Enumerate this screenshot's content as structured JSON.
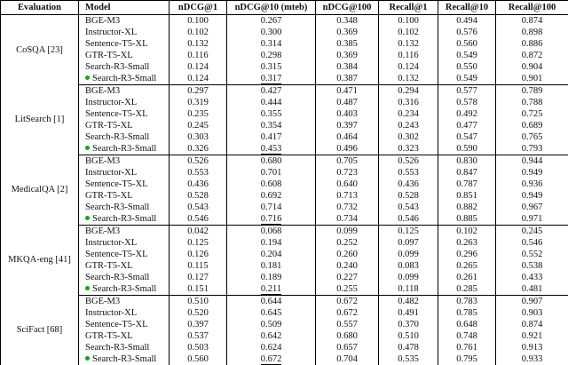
{
  "colors": {
    "dot_green": "#17a317",
    "border": "#000000",
    "text": "#111111",
    "background": "#ffffff"
  },
  "table": {
    "headers": [
      "Evaluation",
      "Model",
      "nDCG@1",
      "nDCG@10 (mteb)",
      "nDCG@100",
      "Recall@1",
      "Recall@10",
      "Recall@100"
    ],
    "groups": [
      {
        "evaluation": "CoSQA [23]",
        "rows": [
          {
            "model": "BGE-M3",
            "dot": false,
            "values": [
              "0.100",
              "0.267",
              "0.348",
              "0.100",
              "0.494",
              "0.874"
            ],
            "underline": []
          },
          {
            "model": "Instructor-XL",
            "dot": false,
            "values": [
              "0.102",
              "0.300",
              "0.369",
              "0.102",
              "0.576",
              "0.898"
            ],
            "underline": []
          },
          {
            "model": "Sentence-T5-XL",
            "dot": false,
            "values": [
              "0.132",
              "0.314",
              "0.385",
              "0.132",
              "0.560",
              "0.886"
            ],
            "underline": []
          },
          {
            "model": "GTR-T5-XL",
            "dot": false,
            "values": [
              "0.116",
              "0.298",
              "0.369",
              "0.116",
              "0.549",
              "0.872"
            ],
            "underline": []
          },
          {
            "model": "Search-R3-Small",
            "dot": false,
            "values": [
              "0.124",
              "0.315",
              "0.384",
              "0.124",
              "0.550",
              "0.904"
            ],
            "underline": []
          },
          {
            "model": "Search-R3-Small",
            "dot": true,
            "values": [
              "0.124",
              "0.317",
              "0.387",
              "0.132",
              "0.549",
              "0.901"
            ],
            "underline": [
              1
            ]
          }
        ]
      },
      {
        "evaluation": "LitSearch [1]",
        "rows": [
          {
            "model": "BGE-M3",
            "dot": false,
            "values": [
              "0.297",
              "0.427",
              "0.471",
              "0.294",
              "0.577",
              "0.789"
            ],
            "underline": []
          },
          {
            "model": "Instructor-XL",
            "dot": false,
            "values": [
              "0.319",
              "0.444",
              "0.487",
              "0.316",
              "0.578",
              "0.788"
            ],
            "underline": []
          },
          {
            "model": "Sentence-T5-XL",
            "dot": false,
            "values": [
              "0.235",
              "0.355",
              "0.403",
              "0.234",
              "0.492",
              "0.725"
            ],
            "underline": []
          },
          {
            "model": "GTR-T5-XL",
            "dot": false,
            "values": [
              "0.245",
              "0.354",
              "0.397",
              "0.243",
              "0.477",
              "0.689"
            ],
            "underline": []
          },
          {
            "model": "Search-R3-Small",
            "dot": false,
            "values": [
              "0.303",
              "0.417",
              "0.464",
              "0.302",
              "0.547",
              "0.765"
            ],
            "underline": []
          },
          {
            "model": "Search-R3-Small",
            "dot": true,
            "values": [
              "0.326",
              "0.453",
              "0.496",
              "0.323",
              "0.590",
              "0.793"
            ],
            "underline": [
              1
            ]
          }
        ]
      },
      {
        "evaluation": "MedicalQA [2]",
        "rows": [
          {
            "model": "BGE-M3",
            "dot": false,
            "values": [
              "0.526",
              "0.680",
              "0.705",
              "0.526",
              "0.830",
              "0.944"
            ],
            "underline": []
          },
          {
            "model": "Instructor-XL",
            "dot": false,
            "values": [
              "0.553",
              "0.701",
              "0.723",
              "0.553",
              "0.847",
              "0.949"
            ],
            "underline": []
          },
          {
            "model": "Sentence-T5-XL",
            "dot": false,
            "values": [
              "0.436",
              "0.608",
              "0.640",
              "0.436",
              "0.787",
              "0.936"
            ],
            "underline": []
          },
          {
            "model": "GTR-T5-XL",
            "dot": false,
            "values": [
              "0.528",
              "0.692",
              "0.713",
              "0.528",
              "0.851",
              "0.949"
            ],
            "underline": []
          },
          {
            "model": "Search-R3-Small",
            "dot": false,
            "values": [
              "0.543",
              "0.714",
              "0.732",
              "0.543",
              "0.882",
              "0.967"
            ],
            "underline": []
          },
          {
            "model": "Search-R3-Small",
            "dot": true,
            "values": [
              "0.546",
              "0.716",
              "0.734",
              "0.546",
              "0.885",
              "0.971"
            ],
            "underline": [
              1
            ]
          }
        ]
      },
      {
        "evaluation": "MKQA-eng [41]",
        "rows": [
          {
            "model": "BGE-M3",
            "dot": false,
            "values": [
              "0.042",
              "0.068",
              "0.099",
              "0.125",
              "0.102",
              "0.245"
            ],
            "underline": []
          },
          {
            "model": "Instructor-XL",
            "dot": false,
            "values": [
              "0.125",
              "0.194",
              "0.252",
              "0.097",
              "0.263",
              "0.546"
            ],
            "underline": []
          },
          {
            "model": "Sentence-T5-XL",
            "dot": false,
            "values": [
              "0.126",
              "0.204",
              "0.260",
              "0.099",
              "0.296",
              "0.552"
            ],
            "underline": []
          },
          {
            "model": "GTR-T5-XL",
            "dot": false,
            "values": [
              "0.115",
              "0.181",
              "0.240",
              "0.083",
              "0.265",
              "0.538"
            ],
            "underline": []
          },
          {
            "model": "Search-R3-Small",
            "dot": false,
            "values": [
              "0.127",
              "0.189",
              "0.227",
              "0.099",
              "0.261",
              "0.433"
            ],
            "underline": []
          },
          {
            "model": "Search-R3-Small",
            "dot": true,
            "values": [
              "0.151",
              "0.211",
              "0.255",
              "0.118",
              "0.285",
              "0.481"
            ],
            "underline": [
              1
            ]
          }
        ]
      },
      {
        "evaluation": "SciFact [68]",
        "rows": [
          {
            "model": "BGE-M3",
            "dot": false,
            "values": [
              "0.510",
              "0.644",
              "0.672",
              "0.482",
              "0.783",
              "0.907"
            ],
            "underline": []
          },
          {
            "model": "Instructor-XL",
            "dot": false,
            "values": [
              "0.520",
              "0.645",
              "0.672",
              "0.491",
              "0.785",
              "0.903"
            ],
            "underline": []
          },
          {
            "model": "Sentence-T5-XL",
            "dot": false,
            "values": [
              "0.397",
              "0.509",
              "0.557",
              "0.370",
              "0.648",
              "0.874"
            ],
            "underline": []
          },
          {
            "model": "GTR-T5-XL",
            "dot": false,
            "values": [
              "0.537",
              "0.642",
              "0.680",
              "0.510",
              "0.748",
              "0.921"
            ],
            "underline": []
          },
          {
            "model": "Search-R3-Small",
            "dot": false,
            "values": [
              "0.503",
              "0.624",
              "0.657",
              "0.478",
              "0.761",
              "0.913"
            ],
            "underline": []
          },
          {
            "model": "Search-R3-Small",
            "dot": true,
            "values": [
              "0.560",
              "0.672",
              "0.704",
              "0.535",
              "0.795",
              "0.933"
            ],
            "underline": [
              1
            ]
          }
        ]
      }
    ]
  }
}
